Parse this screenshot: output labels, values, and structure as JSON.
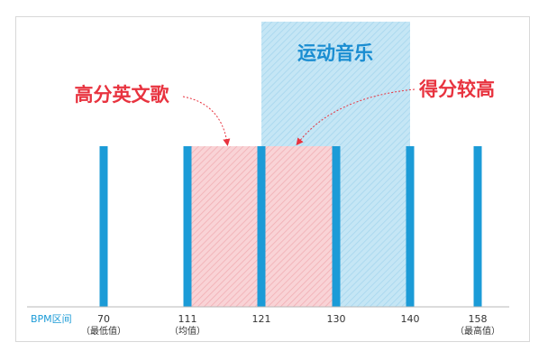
{
  "diagram": {
    "axis_label": "BPM区间",
    "ticks": [
      {
        "value": 70,
        "label": "70",
        "sublabel": "（最低值）"
      },
      {
        "value": 111,
        "label": "111",
        "sublabel": "（均值）"
      },
      {
        "value": 121,
        "label": "121",
        "sublabel": ""
      },
      {
        "value": 130,
        "label": "130",
        "sublabel": ""
      },
      {
        "value": 140,
        "label": "140",
        "sublabel": ""
      },
      {
        "value": 158,
        "label": "158",
        "sublabel": "（最高值）"
      }
    ],
    "ranges": [
      {
        "name": "运动音乐",
        "from": 121,
        "to": 140,
        "color": "#1c96d8"
      },
      {
        "name": "高分英文歌",
        "from": 111,
        "to": 130,
        "color": "#ec3f4d"
      }
    ],
    "labels": {
      "english_songs": "高分英文歌",
      "sport_music": "运动音乐",
      "high_score": "得分较高"
    },
    "colors": {
      "bar": "#1b9bd7",
      "axis_text": "#1b9bd7",
      "red_label": "#e8333f",
      "blue_label": "#1a8dd1",
      "blue_fill": "#bfe3f4",
      "red_fill": "#f6c4c8"
    }
  }
}
